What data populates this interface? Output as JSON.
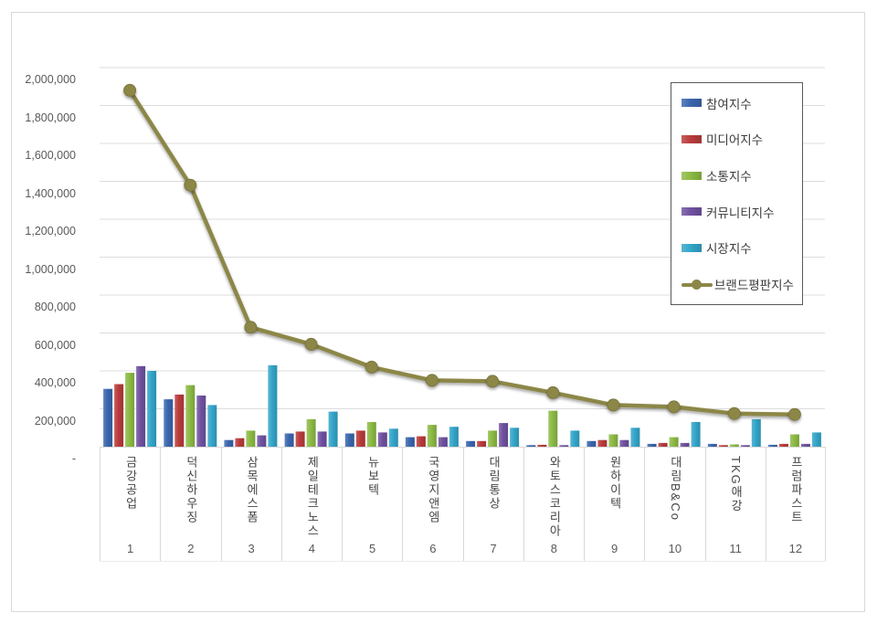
{
  "page": {
    "background": "#ffffff",
    "frame_border_color": "#d9d9d9"
  },
  "chart_data": {
    "type": "bar",
    "subtype": "grouped-bars-with-line-overlay",
    "title": "",
    "xlabel": "",
    "ylabel": "",
    "categories": [
      "금강공업",
      "덕신하우징",
      "삼목에스폼",
      "제일테크노스",
      "뉴보텍",
      "국영지앤엠",
      "대림통상",
      "와토스코리아",
      "원하이텍",
      "대림B&Co",
      "TKG애강",
      "프럼파스트"
    ],
    "category_ranks": [
      "1",
      "2",
      "3",
      "4",
      "5",
      "6",
      "7",
      "8",
      "9",
      "10",
      "11",
      "12"
    ],
    "ylim": [
      0,
      2000000
    ],
    "ytick_step": 200000,
    "ytick_labels": [
      "-",
      "200,000",
      "400,000",
      "600,000",
      "800,000",
      "1,000,000",
      "1,200,000",
      "1,400,000",
      "1,600,000",
      "1,800,000",
      "2,000,000"
    ],
    "grid": true,
    "legend_position": "inside-top-right",
    "series": [
      {
        "name": "참여지수",
        "kind": "bar",
        "color": "#3a66ae",
        "values": [
          305000,
          250000,
          35000,
          70000,
          70000,
          50000,
          30000,
          8000,
          30000,
          15000,
          15000,
          10000
        ]
      },
      {
        "name": "미디어지수",
        "kind": "bar",
        "color": "#b93b3b",
        "values": [
          330000,
          275000,
          45000,
          80000,
          85000,
          55000,
          30000,
          10000,
          35000,
          20000,
          8000,
          15000
        ]
      },
      {
        "name": "소통지수",
        "kind": "bar",
        "color": "#8cba44",
        "values": [
          390000,
          325000,
          85000,
          145000,
          130000,
          115000,
          85000,
          190000,
          65000,
          50000,
          12000,
          65000
        ]
      },
      {
        "name": "커뮤니티지수",
        "kind": "bar",
        "color": "#6f51a0",
        "values": [
          425000,
          270000,
          60000,
          80000,
          75000,
          50000,
          125000,
          8000,
          35000,
          20000,
          8000,
          15000
        ]
      },
      {
        "name": "시장지수",
        "kind": "bar",
        "color": "#33a5c9",
        "values": [
          400000,
          220000,
          430000,
          185000,
          95000,
          105000,
          100000,
          85000,
          100000,
          130000,
          145000,
          75000
        ]
      },
      {
        "name": "브랜드평판지수",
        "kind": "line",
        "color": "#8c8747",
        "values": [
          1880000,
          1380000,
          630000,
          540000,
          420000,
          350000,
          345000,
          285000,
          220000,
          210000,
          175000,
          170000
        ]
      }
    ],
    "colors": {
      "gridline": "#dcdcdc",
      "axis_text": "#595959",
      "category_text": "#454545",
      "legend_border": "#595959"
    }
  }
}
